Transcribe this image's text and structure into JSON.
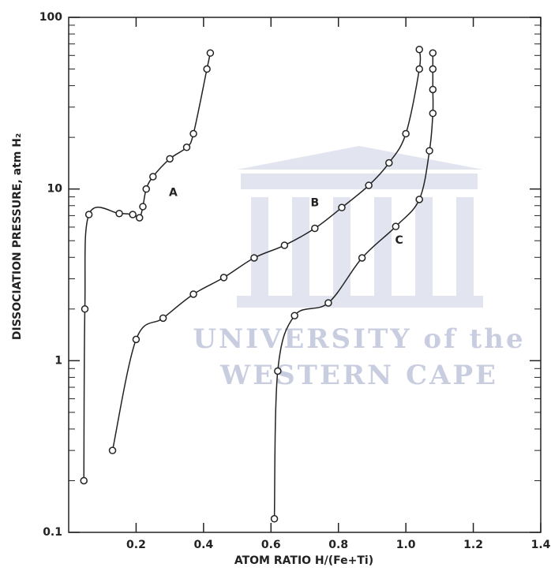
{
  "chart_data": {
    "type": "line",
    "xlabel": "ATOM RATIO H/(Fe+Ti)",
    "ylabel": "DISSOCIATION PRESSURE, atm H₂",
    "watermark": [
      "UNIVERSITY of the",
      "WESTERN CAPE"
    ],
    "log_y": true,
    "color": "#222222",
    "xlim": [
      0,
      1.4
    ],
    "ylim": [
      0.1,
      100
    ],
    "xticks": [
      0.2,
      0.4,
      0.6,
      0.8,
      {
        "value": 1,
        "label": "1.0"
      },
      1.2,
      1.4
    ],
    "yticks": [
      0.1,
      1,
      10,
      100
    ],
    "series": [
      {
        "name": "A",
        "x": [
          0.045,
          0.048,
          0.06,
          0.15,
          0.19,
          0.21,
          0.22,
          0.23,
          0.25,
          0.3,
          0.35,
          0.37,
          0.41,
          0.42
        ],
        "values": [
          0.2,
          2,
          7.1,
          7.2,
          7.1,
          6.8,
          7.9,
          10,
          11.8,
          15,
          17.5,
          21,
          50,
          62
        ]
      },
      {
        "name": "B",
        "x": [
          0.13,
          0.2,
          0.28,
          0.37,
          0.46,
          0.55,
          0.64,
          0.73,
          0.81,
          0.89,
          0.95,
          1.0,
          1.04,
          1.04
        ],
        "values": [
          0.3,
          1.33,
          1.77,
          2.44,
          3.05,
          3.97,
          4.7,
          5.9,
          7.8,
          10.5,
          14.2,
          21,
          50,
          65
        ]
      },
      {
        "name": "C",
        "x": [
          0.61,
          0.62,
          0.67,
          0.77,
          0.87,
          0.97,
          1.04,
          1.07,
          1.08,
          1.08,
          1.08,
          1.08
        ],
        "values": [
          0.12,
          0.87,
          1.83,
          2.17,
          3.97,
          6.05,
          8.7,
          16.7,
          27.6,
          38,
          50,
          62
        ]
      }
    ]
  }
}
